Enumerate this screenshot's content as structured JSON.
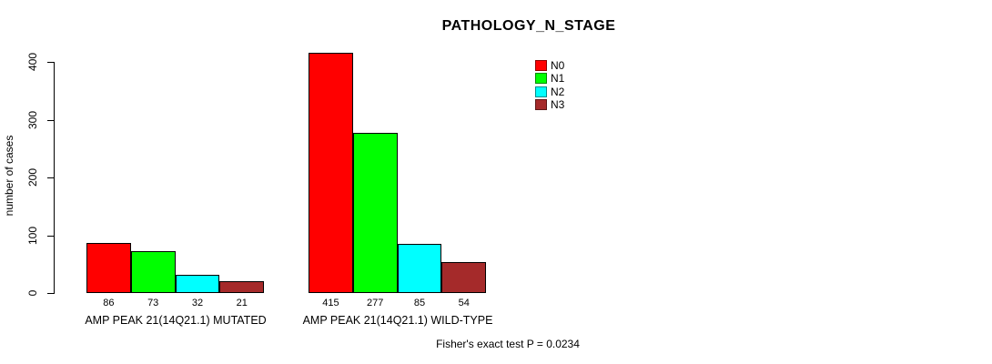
{
  "chart_data": {
    "type": "bar",
    "title": "PATHOLOGY_N_STAGE",
    "ylabel": "number of cases",
    "xlabel": "",
    "ylim": [
      0,
      400
    ],
    "yticks": [
      0,
      100,
      200,
      300,
      400
    ],
    "grid": false,
    "legend_position": "top-right",
    "bar_value_labels": true,
    "categories": [
      "AMP PEAK 21(14Q21.1) MUTATED",
      "AMP PEAK 21(14Q21.1) WILD-TYPE"
    ],
    "series": [
      {
        "name": "N0",
        "color": "#ff0000",
        "values": [
          86,
          415
        ]
      },
      {
        "name": "N1",
        "color": "#00ff00",
        "values": [
          73,
          277
        ]
      },
      {
        "name": "N2",
        "color": "#00ffff",
        "values": [
          32,
          85
        ]
      },
      {
        "name": "N3",
        "color": "#a52a2a",
        "values": [
          21,
          54
        ]
      }
    ],
    "annotation": "Fisher's exact test P = 0.0234"
  }
}
